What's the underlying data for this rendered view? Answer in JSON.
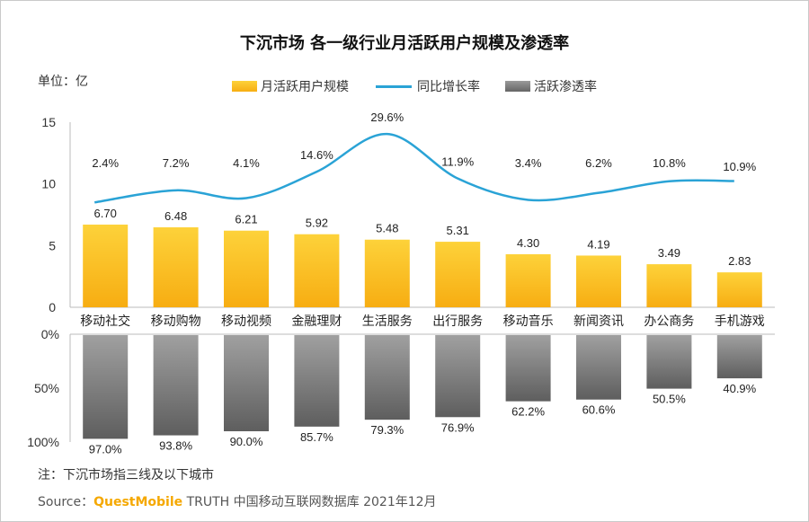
{
  "chart_data": {
    "type": "bar",
    "title": "下沉市场 各一级行业月活跃用户规模及渗透率",
    "unit_label": "单位：亿",
    "categories": [
      "移动社交",
      "移动购物",
      "移动视频",
      "金融理财",
      "生活服务",
      "出行服务",
      "移动音乐",
      "新闻资讯",
      "办公商务",
      "手机游戏"
    ],
    "upper_y_ticks": [
      "0",
      "5",
      "10",
      "15"
    ],
    "upper_ylim": [
      0,
      15
    ],
    "lower_y_ticks": [
      "0%",
      "50%",
      "100%"
    ],
    "lower_ylim": [
      0,
      100
    ],
    "series": [
      {
        "name": "月活跃用户规模",
        "kind": "bar",
        "color": "#fbc21a",
        "values": [
          6.7,
          6.48,
          6.21,
          5.92,
          5.48,
          5.31,
          4.3,
          4.19,
          3.49,
          2.83
        ],
        "labels": [
          "6.70",
          "6.48",
          "6.21",
          "5.92",
          "5.48",
          "5.31",
          "4.30",
          "4.19",
          "3.49",
          "2.83"
        ]
      },
      {
        "name": "同比增长率",
        "kind": "line",
        "color": "#2aa3d6",
        "values": [
          2.4,
          7.2,
          4.1,
          14.6,
          29.6,
          11.9,
          3.4,
          6.2,
          10.8,
          10.9
        ],
        "labels": [
          "2.4%",
          "7.2%",
          "4.1%",
          "14.6%",
          "29.6%",
          "11.9%",
          "3.4%",
          "6.2%",
          "10.8%",
          "10.9%"
        ]
      },
      {
        "name": "活跃渗透率",
        "kind": "bar",
        "color": "#7a7a7a",
        "values": [
          97.0,
          93.8,
          90.0,
          85.7,
          79.3,
          76.9,
          62.2,
          60.6,
          50.5,
          40.9
        ],
        "labels": [
          "97.0%",
          "93.8%",
          "90.0%",
          "85.7%",
          "79.3%",
          "76.9%",
          "62.2%",
          "60.6%",
          "50.5%",
          "40.9%"
        ]
      }
    ],
    "legend_position": "top",
    "grid": false
  },
  "note": "注：下沉市场指三线及以下城市",
  "source": {
    "prefix": "Source：",
    "brand": "QuestMobile",
    "text": " TRUTH 中国移动互联网数据库 2021年12月"
  }
}
